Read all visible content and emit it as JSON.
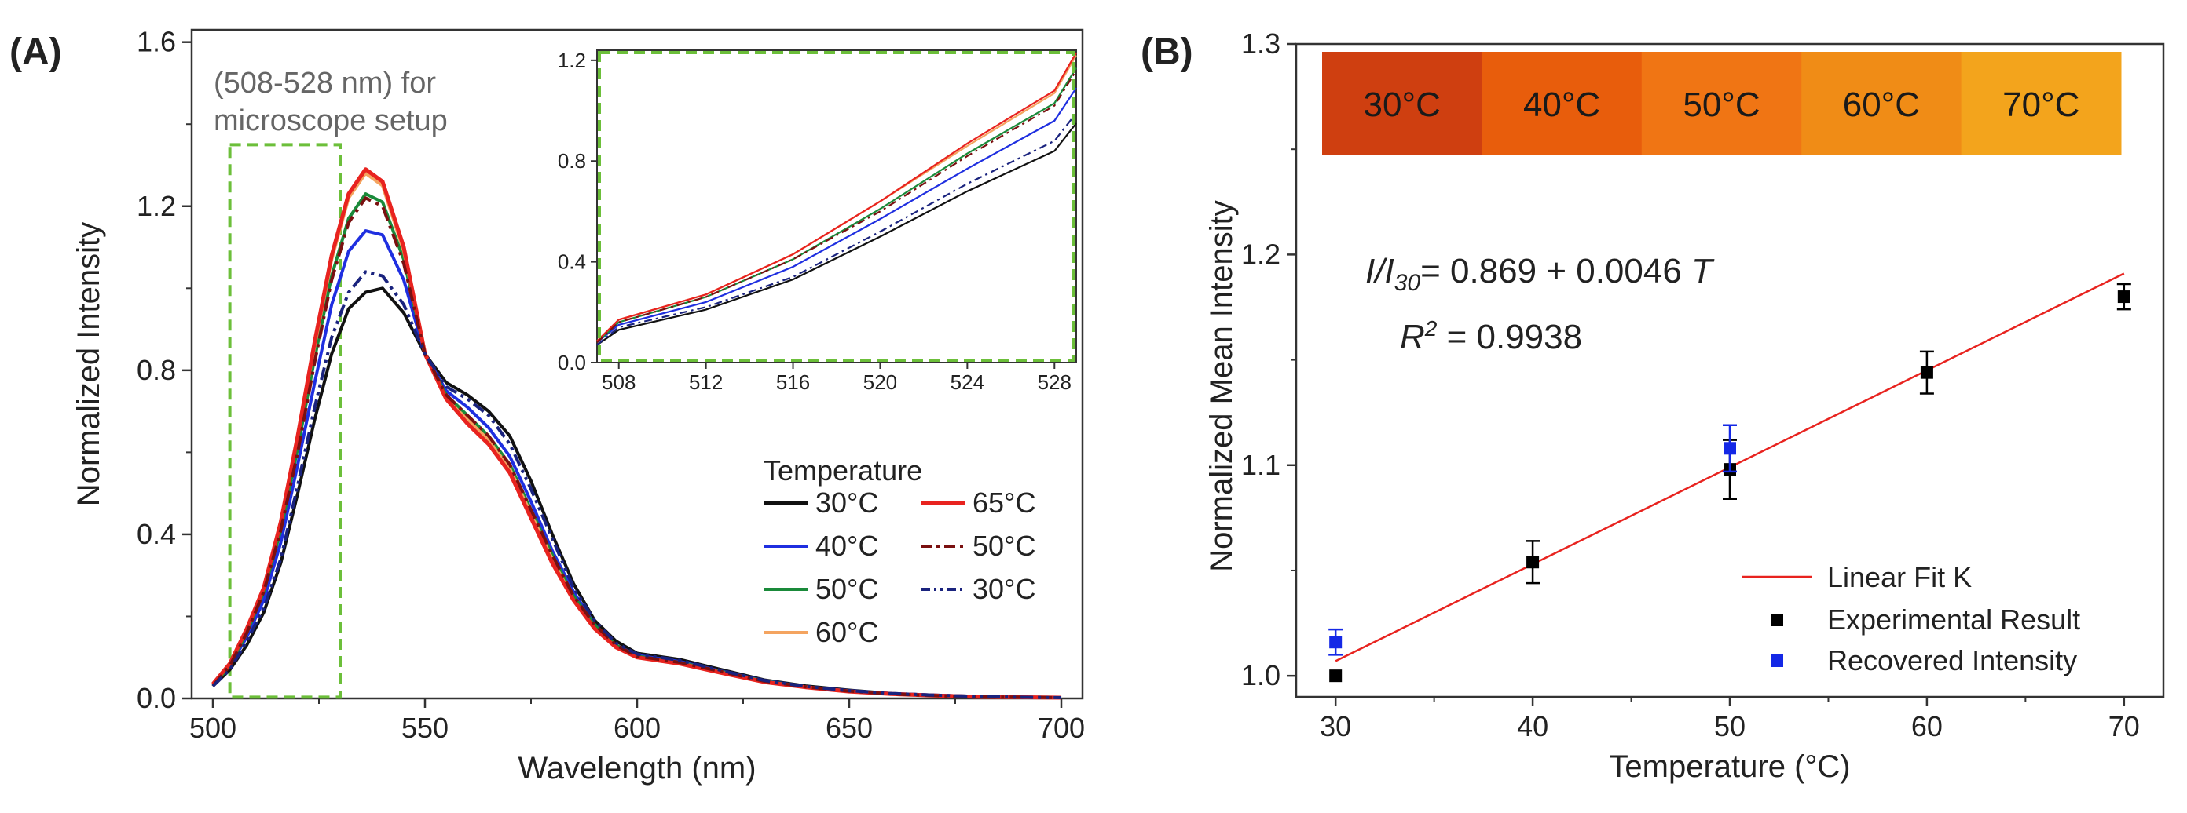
{
  "panels": {
    "a": "(A)",
    "b": "(B)"
  },
  "chart_data": [
    {
      "type": "line",
      "panel": "(A)",
      "xlabel": "Wavelength (nm)",
      "ylabel": "Normalized Intensity",
      "xlim": [
        495,
        705
      ],
      "ylim": [
        0,
        1.63
      ],
      "xticks": [
        500,
        550,
        600,
        650,
        700
      ],
      "yticks": [
        0.0,
        0.4,
        0.8,
        1.2,
        1.6
      ],
      "ytick_labels": [
        "0.0",
        "0.4",
        "0.8",
        "1.2",
        "1.6"
      ],
      "annotation": [
        "(508-528 nm) for",
        "microscope setup"
      ],
      "highlight_region_nm": [
        504,
        530
      ],
      "legend": {
        "title": "Temperature",
        "placement": "lower-right"
      },
      "x": [
        500,
        504,
        508,
        512,
        516,
        520,
        524,
        528,
        532,
        536,
        540,
        545,
        550,
        555,
        560,
        565,
        570,
        575,
        580,
        585,
        590,
        595,
        600,
        610,
        620,
        630,
        640,
        650,
        660,
        670,
        680,
        690,
        700
      ],
      "series": [
        {
          "name": "30°C",
          "color": "#111111",
          "dash": "solid",
          "width": 4,
          "values": [
            0.03,
            0.07,
            0.13,
            0.21,
            0.33,
            0.5,
            0.68,
            0.84,
            0.95,
            0.99,
            1.0,
            0.94,
            0.84,
            0.77,
            0.74,
            0.7,
            0.64,
            0.53,
            0.4,
            0.28,
            0.19,
            0.14,
            0.11,
            0.095,
            0.07,
            0.045,
            0.03,
            0.02,
            0.012,
            0.008,
            0.005,
            0.003,
            0.002
          ]
        },
        {
          "name": "40°C",
          "color": "#1f2fe0",
          "dash": "solid",
          "width": 4,
          "values": [
            0.03,
            0.08,
            0.15,
            0.24,
            0.38,
            0.57,
            0.77,
            0.96,
            1.09,
            1.14,
            1.13,
            1.02,
            0.84,
            0.75,
            0.71,
            0.66,
            0.59,
            0.48,
            0.36,
            0.26,
            0.18,
            0.13,
            0.105,
            0.09,
            0.066,
            0.043,
            0.028,
            0.019,
            0.012,
            0.008,
            0.005,
            0.003,
            0.002
          ]
        },
        {
          "name": "50°C",
          "color": "#1a8a3a",
          "dash": "solid",
          "width": 4,
          "values": [
            0.03,
            0.08,
            0.16,
            0.26,
            0.41,
            0.61,
            0.83,
            1.03,
            1.17,
            1.23,
            1.21,
            1.07,
            0.84,
            0.74,
            0.69,
            0.64,
            0.57,
            0.46,
            0.35,
            0.25,
            0.18,
            0.13,
            0.103,
            0.088,
            0.065,
            0.042,
            0.028,
            0.018,
            0.011,
            0.007,
            0.004,
            0.003,
            0.002
          ]
        },
        {
          "name": "60°C",
          "color": "#f4a460",
          "dash": "solid",
          "width": 4,
          "values": [
            0.035,
            0.085,
            0.17,
            0.27,
            0.43,
            0.64,
            0.86,
            1.07,
            1.22,
            1.28,
            1.25,
            1.09,
            0.84,
            0.73,
            0.68,
            0.63,
            0.56,
            0.45,
            0.34,
            0.24,
            0.17,
            0.125,
            0.1,
            0.086,
            0.063,
            0.041,
            0.027,
            0.018,
            0.011,
            0.007,
            0.004,
            0.003,
            0.002
          ]
        },
        {
          "name": "65°C",
          "color": "#e8231f",
          "dash": "solid",
          "width": 5,
          "values": [
            0.035,
            0.085,
            0.17,
            0.27,
            0.43,
            0.64,
            0.87,
            1.08,
            1.23,
            1.29,
            1.26,
            1.1,
            0.84,
            0.73,
            0.67,
            0.62,
            0.55,
            0.44,
            0.33,
            0.24,
            0.17,
            0.125,
            0.1,
            0.085,
            0.062,
            0.04,
            0.027,
            0.017,
            0.011,
            0.007,
            0.004,
            0.003,
            0.002
          ]
        },
        {
          "name": "50°C",
          "color": "#7a1010",
          "dash": "dashdot",
          "width": 4,
          "values": [
            0.03,
            0.08,
            0.16,
            0.26,
            0.41,
            0.6,
            0.82,
            1.02,
            1.16,
            1.22,
            1.2,
            1.06,
            0.84,
            0.74,
            0.69,
            0.64,
            0.57,
            0.46,
            0.35,
            0.25,
            0.18,
            0.13,
            0.103,
            0.088,
            0.065,
            0.042,
            0.028,
            0.018,
            0.011,
            0.007,
            0.004,
            0.003,
            0.002
          ]
        },
        {
          "name": "30°C",
          "color": "#1a237e",
          "dash": "dashdotdot",
          "width": 4,
          "values": [
            0.03,
            0.07,
            0.14,
            0.22,
            0.34,
            0.52,
            0.71,
            0.88,
            0.99,
            1.04,
            1.03,
            0.96,
            0.84,
            0.76,
            0.73,
            0.69,
            0.62,
            0.51,
            0.39,
            0.27,
            0.19,
            0.135,
            0.108,
            0.093,
            0.068,
            0.044,
            0.029,
            0.019,
            0.012,
            0.008,
            0.005,
            0.003,
            0.002
          ]
        }
      ],
      "inset": {
        "xlim": [
          507,
          529
        ],
        "ylim": [
          0,
          1.24
        ],
        "xticks": [
          508,
          512,
          516,
          520,
          524,
          528
        ],
        "yticks": [
          0.0,
          0.4,
          0.8,
          1.2
        ],
        "ytick_labels": [
          "0.0",
          "0.4",
          "0.8",
          "1.2"
        ]
      }
    },
    {
      "type": "scatter",
      "panel": "(B)",
      "xlabel": "Temperature (°C)",
      "ylabel": "Normalized Mean Intensity",
      "xlim": [
        28,
        72
      ],
      "ylim": [
        0.99,
        1.3
      ],
      "xticks": [
        30,
        40,
        50,
        60,
        70
      ],
      "yticks": [
        1.0,
        1.1,
        1.2,
        1.3
      ],
      "ytick_labels": [
        "1.0",
        "1.1",
        "1.2",
        "1.3"
      ],
      "color_bar": {
        "labels": [
          "30°C",
          "40°C",
          "50°C",
          "60°C",
          "70°C"
        ],
        "colors": [
          "#cf3f10",
          "#e85d0c",
          "#f07514",
          "#f08c16",
          "#f3a41c"
        ]
      },
      "equation": {
        "lhs_i": "I/I",
        "sub": "30",
        "rhs": "= 0.869 + 0.0046",
        "var": "T"
      },
      "r2": {
        "lhs": "R",
        "sup": "2",
        "rhs": " = 0.9938"
      },
      "fit": {
        "name": "Linear Fit K",
        "color": "#e8231f",
        "intercept": 0.869,
        "slope": 0.0046,
        "x_range": [
          30,
          70
        ]
      },
      "series": [
        {
          "name": "Experimental Result",
          "color": "#000000",
          "x": [
            30,
            40,
            50,
            60,
            70
          ],
          "values": [
            1.0,
            1.054,
            1.098,
            1.144,
            1.18
          ],
          "errors": [
            0,
            0.01,
            0.014,
            0.01,
            0.006
          ]
        },
        {
          "name": "Recovered Intensity",
          "color": "#1428e6",
          "x": [
            30,
            50
          ],
          "values": [
            1.016,
            1.108
          ],
          "errors": [
            0.006,
            0.011
          ]
        }
      ],
      "legend": {
        "placement": "lower-right"
      }
    }
  ]
}
